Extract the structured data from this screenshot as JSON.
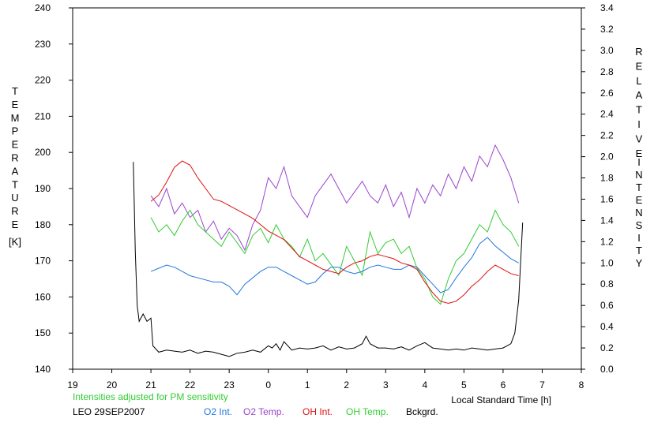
{
  "chart_data": {
    "type": "line",
    "x_axis": {
      "label": "Local Standard Time [h]",
      "ticks": [
        19,
        20,
        21,
        22,
        23,
        0,
        1,
        2,
        3,
        4,
        5,
        6,
        7,
        8
      ],
      "range": [
        19,
        32
      ]
    },
    "y_left": {
      "label_letters": [
        "T",
        "E",
        "M",
        "P",
        "E",
        "R",
        "A",
        "T",
        "U",
        "R",
        "E"
      ],
      "unit": "[K]",
      "range": [
        140,
        240
      ],
      "ticks": [
        140,
        150,
        160,
        170,
        180,
        190,
        200,
        210,
        220,
        230,
        240
      ]
    },
    "y_right": {
      "label1_letters": [
        "R",
        "E",
        "L",
        "A",
        "T",
        "I",
        "V",
        "E"
      ],
      "label2_letters": [
        "I",
        "N",
        "T",
        "E",
        "N",
        "S",
        "I",
        "T",
        "Y"
      ],
      "range": [
        0.0,
        3.4
      ],
      "ticks": [
        "0.0",
        "0.2",
        "0.4",
        "0.6",
        "0.8",
        "1.0",
        "1.2",
        "1.4",
        "1.6",
        "1.8",
        "2.0",
        "2.2",
        "2.4",
        "2.6",
        "2.8",
        "3.0",
        "3.2",
        "3.4"
      ]
    },
    "note": "Intensities adjusted for PM sensitivity",
    "station": "LEO 29SEP2007",
    "series": [
      {
        "name": "O2 Int.",
        "axis": "right",
        "color": "#2277dd",
        "x": [
          21.0,
          21.2,
          21.4,
          21.6,
          21.8,
          22.0,
          22.2,
          22.4,
          22.6,
          22.8,
          23.0,
          23.2,
          23.4,
          23.6,
          23.8,
          24.0,
          24.2,
          24.4,
          24.6,
          24.8,
          25.0,
          25.2,
          25.4,
          25.6,
          25.8,
          26.0,
          26.2,
          26.4,
          26.6,
          26.8,
          27.0,
          27.2,
          27.4,
          27.6,
          27.8,
          28.0,
          28.2,
          28.4,
          28.6,
          28.8,
          29.0,
          29.2,
          29.4,
          29.6,
          29.8,
          30.0,
          30.2,
          30.4
        ],
        "y": [
          0.92,
          0.95,
          0.98,
          0.96,
          0.92,
          0.88,
          0.86,
          0.84,
          0.82,
          0.82,
          0.78,
          0.7,
          0.8,
          0.86,
          0.92,
          0.96,
          0.96,
          0.92,
          0.88,
          0.84,
          0.8,
          0.82,
          0.9,
          0.96,
          0.96,
          0.92,
          0.9,
          0.92,
          0.96,
          0.98,
          0.96,
          0.94,
          0.94,
          0.98,
          0.96,
          0.88,
          0.8,
          0.72,
          0.75,
          0.86,
          0.96,
          1.05,
          1.18,
          1.24,
          1.16,
          1.1,
          1.04,
          1.0
        ]
      },
      {
        "name": "O2 Temp.",
        "axis": "left",
        "color": "#9944cc",
        "x": [
          21.0,
          21.2,
          21.4,
          21.6,
          21.8,
          22.0,
          22.2,
          22.4,
          22.6,
          22.8,
          23.0,
          23.2,
          23.4,
          23.6,
          23.8,
          24.0,
          24.2,
          24.4,
          24.6,
          24.8,
          25.0,
          25.2,
          25.4,
          25.6,
          25.8,
          26.0,
          26.2,
          26.4,
          26.6,
          26.8,
          27.0,
          27.2,
          27.4,
          27.6,
          27.8,
          28.0,
          28.2,
          28.4,
          28.6,
          28.8,
          29.0,
          29.2,
          29.4,
          29.6,
          29.8,
          30.0,
          30.2,
          30.4
        ],
        "y": [
          188,
          185,
          190,
          183,
          186,
          182,
          184,
          178,
          181,
          176,
          179,
          177,
          173,
          180,
          184,
          193,
          190,
          196,
          188,
          185,
          182,
          188,
          191,
          194,
          190,
          186,
          189,
          192,
          188,
          186,
          191,
          185,
          189,
          182,
          190,
          186,
          191,
          188,
          194,
          190,
          196,
          192,
          199,
          196,
          202,
          198,
          193,
          186
        ]
      },
      {
        "name": "OH Int.",
        "axis": "right",
        "color": "#dd1111",
        "x": [
          21.0,
          21.2,
          21.4,
          21.6,
          21.8,
          22.0,
          22.2,
          22.4,
          22.6,
          22.8,
          23.0,
          23.2,
          23.4,
          23.6,
          23.8,
          24.0,
          24.2,
          24.4,
          24.6,
          24.8,
          25.0,
          25.2,
          25.4,
          25.6,
          25.8,
          26.0,
          26.2,
          26.4,
          26.6,
          26.8,
          27.0,
          27.2,
          27.4,
          27.6,
          27.8,
          28.0,
          28.2,
          28.4,
          28.6,
          28.8,
          29.0,
          29.2,
          29.4,
          29.6,
          29.8,
          30.0,
          30.2,
          30.4
        ],
        "y": [
          1.58,
          1.64,
          1.76,
          1.9,
          1.96,
          1.92,
          1.8,
          1.7,
          1.6,
          1.58,
          1.54,
          1.5,
          1.46,
          1.42,
          1.36,
          1.3,
          1.26,
          1.22,
          1.14,
          1.06,
          1.02,
          0.98,
          0.94,
          0.92,
          0.9,
          0.96,
          1.0,
          1.02,
          1.06,
          1.08,
          1.06,
          1.04,
          1.0,
          0.98,
          0.94,
          0.82,
          0.72,
          0.64,
          0.62,
          0.64,
          0.7,
          0.78,
          0.84,
          0.92,
          0.98,
          0.94,
          0.9,
          0.88
        ]
      },
      {
        "name": "OH Temp.",
        "axis": "left",
        "color": "#33cc33",
        "x": [
          21.0,
          21.2,
          21.4,
          21.6,
          21.8,
          22.0,
          22.2,
          22.4,
          22.6,
          22.8,
          23.0,
          23.2,
          23.4,
          23.6,
          23.8,
          24.0,
          24.2,
          24.4,
          24.6,
          24.8,
          25.0,
          25.2,
          25.4,
          25.6,
          25.8,
          26.0,
          26.2,
          26.4,
          26.6,
          26.8,
          27.0,
          27.2,
          27.4,
          27.6,
          27.8,
          28.0,
          28.2,
          28.4,
          28.6,
          28.8,
          29.0,
          29.2,
          29.4,
          29.6,
          29.8,
          30.0,
          30.2,
          30.4
        ],
        "y": [
          182,
          178,
          180,
          177,
          181,
          184,
          180,
          178,
          176,
          174,
          178,
          175,
          172,
          177,
          179,
          175,
          180,
          176,
          174,
          171,
          176,
          170,
          172,
          169,
          166,
          174,
          170,
          166,
          178,
          172,
          175,
          176,
          172,
          174,
          168,
          165,
          160,
          158,
          165,
          170,
          172,
          176,
          180,
          178,
          184,
          180,
          178,
          174
        ]
      },
      {
        "name": "Bckgrd.",
        "axis": "right",
        "color": "#000000",
        "x": [
          20.55,
          20.6,
          20.65,
          20.7,
          20.8,
          20.9,
          21.0,
          21.05,
          21.2,
          21.4,
          21.6,
          21.8,
          22.0,
          22.2,
          22.4,
          22.6,
          22.8,
          23.0,
          23.2,
          23.4,
          23.6,
          23.8,
          24.0,
          24.1,
          24.2,
          24.3,
          24.4,
          24.6,
          24.8,
          25.0,
          25.2,
          25.4,
          25.6,
          25.8,
          26.0,
          26.2,
          26.4,
          26.5,
          26.6,
          26.8,
          27.0,
          27.2,
          27.4,
          27.6,
          27.8,
          28.0,
          28.2,
          28.4,
          28.6,
          28.8,
          29.0,
          29.2,
          29.4,
          29.6,
          29.8,
          30.0,
          30.2,
          30.3,
          30.4,
          30.5
        ],
        "y": [
          1.95,
          1.1,
          0.6,
          0.45,
          0.52,
          0.45,
          0.48,
          0.22,
          0.16,
          0.18,
          0.17,
          0.16,
          0.18,
          0.15,
          0.17,
          0.16,
          0.14,
          0.12,
          0.15,
          0.16,
          0.18,
          0.16,
          0.22,
          0.2,
          0.24,
          0.18,
          0.26,
          0.18,
          0.2,
          0.19,
          0.2,
          0.22,
          0.18,
          0.21,
          0.19,
          0.2,
          0.24,
          0.31,
          0.24,
          0.2,
          0.2,
          0.19,
          0.21,
          0.18,
          0.22,
          0.25,
          0.2,
          0.19,
          0.18,
          0.19,
          0.18,
          0.2,
          0.19,
          0.18,
          0.19,
          0.2,
          0.24,
          0.34,
          0.65,
          1.38
        ]
      }
    ]
  }
}
